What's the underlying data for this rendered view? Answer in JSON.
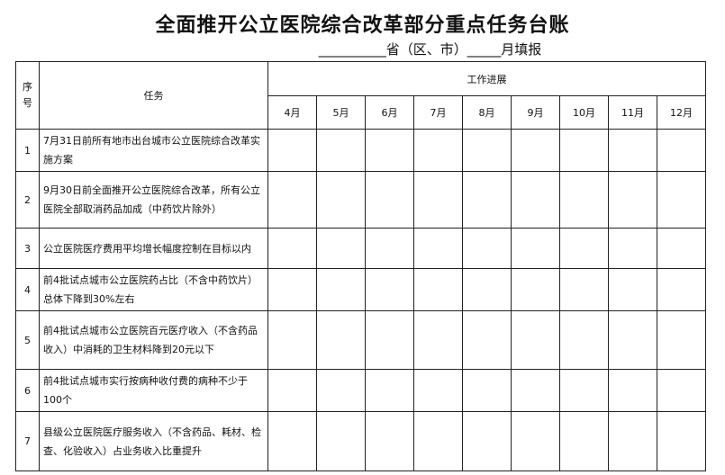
{
  "title": "全面推开公立医院综合改革部分重点任务台账",
  "subtitle": "__________省（区、市）_____月填报",
  "headers": {
    "seq": "序号",
    "task": "任务",
    "progress": "工作进展",
    "months": [
      "4月",
      "5月",
      "6月",
      "7月",
      "8月",
      "9月",
      "10月",
      "11月",
      "12月"
    ]
  },
  "rows": [
    {
      "seq": "1",
      "task": "7月31日前所有地市出台城市公立医院综合改革实施方案"
    },
    {
      "seq": "2",
      "task": "9月30日前全面推开公立医院综合改革，所有公立医院全部取消药品加成（中药饮片除外）"
    },
    {
      "seq": "3",
      "task": "公立医院医疗费用平均增长幅度控制在目标以内"
    },
    {
      "seq": "4",
      "task": "前4批试点城市公立医院药占比（不含中药饮片）总体下降到30%左右"
    },
    {
      "seq": "5",
      "task": "前4批试点城市公立医院百元医疗收入（不含药品收入）中消耗的卫生材料降到20元以下"
    },
    {
      "seq": "6",
      "task": "前4批试点城市实行按病种收付费的病种不少于100个"
    },
    {
      "seq": "7",
      "task": "县级公立医院医疗服务收入（不含药品、耗材、检查、化验收入）占业务收入比重提升"
    }
  ]
}
